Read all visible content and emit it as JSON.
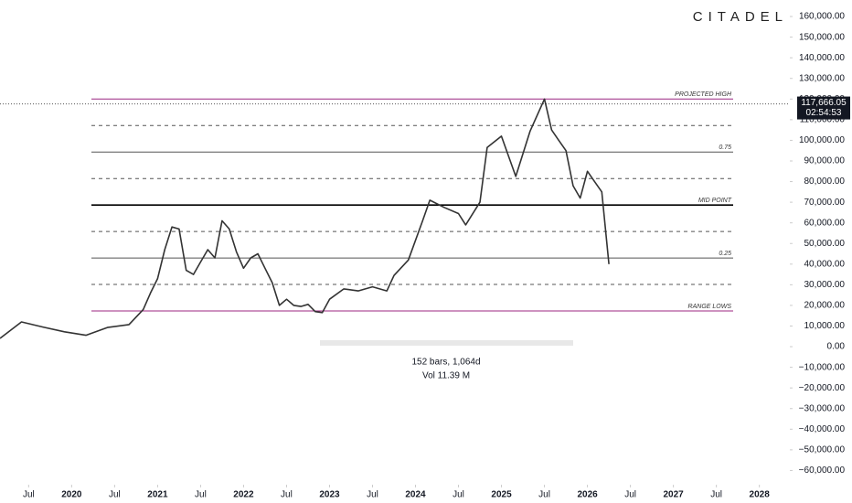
{
  "chart_data": {
    "type": "line",
    "brand": "CITADEL",
    "x": [
      "2019-03",
      "2019-06",
      "2019-09",
      "2019-12",
      "2020-03",
      "2020-06",
      "2020-09",
      "2020-11",
      "2020-12",
      "2021-01",
      "2021-02",
      "2021-03",
      "2021-04",
      "2021-05",
      "2021-06",
      "2021-07",
      "2021-08",
      "2021-09",
      "2021-10",
      "2021-11",
      "2021-12",
      "2022-01",
      "2022-02",
      "2022-03",
      "2022-04",
      "2022-05",
      "2022-06",
      "2022-07",
      "2022-08",
      "2022-09",
      "2022-10",
      "2022-11",
      "2022-12",
      "2023-01",
      "2023-03",
      "2023-05",
      "2023-07",
      "2023-09",
      "2023-10",
      "2023-12",
      "2024-02",
      "2024-03",
      "2024-05",
      "2024-07",
      "2024-08",
      "2024-10",
      "2024-11",
      "2025-01",
      "2025-03",
      "2025-05",
      "2025-07",
      "2025-08",
      "2025-09",
      "2025-10",
      "2025-11",
      "2025-12",
      "2026-01",
      "2026-02",
      "2026-03",
      "2026-04"
    ],
    "series": [
      {
        "color": "#333333",
        "values": [
          4000,
          12000,
          9500,
          7200,
          5500,
          9300,
          10700,
          18000,
          26000,
          33000,
          47000,
          58000,
          57000,
          37000,
          35000,
          41000,
          47000,
          43000,
          61000,
          57000,
          46000,
          38000,
          43000,
          45000,
          38000,
          31000,
          20000,
          23000,
          20000,
          19500,
          20500,
          17000,
          16500,
          23000,
          28000,
          27000,
          29000,
          27000,
          34500,
          42000,
          61000,
          71000,
          67500,
          64500,
          59000,
          70000,
          96500,
          102000,
          82500,
          104500,
          120000,
          105000,
          100000,
          95000,
          78000,
          72000,
          85000,
          80000,
          75000,
          40000
        ]
      }
    ],
    "xlim": [
      "2019-03",
      "2028-05"
    ],
    "xticks": [
      {
        "value": "2019-07",
        "label": "Jul"
      },
      {
        "value": "2020-01",
        "label": "2020"
      },
      {
        "value": "2020-07",
        "label": "Jul"
      },
      {
        "value": "2021-01",
        "label": "2021"
      },
      {
        "value": "2021-07",
        "label": "Jul"
      },
      {
        "value": "2022-01",
        "label": "2022"
      },
      {
        "value": "2022-07",
        "label": "Jul"
      },
      {
        "value": "2023-01",
        "label": "2023"
      },
      {
        "value": "2023-07",
        "label": "Jul"
      },
      {
        "value": "2024-01",
        "label": "2024"
      },
      {
        "value": "2024-07",
        "label": "Jul"
      },
      {
        "value": "2025-01",
        "label": "2025"
      },
      {
        "value": "2025-07",
        "label": "Jul"
      },
      {
        "value": "2026-01",
        "label": "2026"
      },
      {
        "value": "2026-07",
        "label": "Jul"
      },
      {
        "value": "2027-01",
        "label": "2027"
      },
      {
        "value": "2027-07",
        "label": "Jul"
      },
      {
        "value": "2028-01",
        "label": "2028"
      }
    ],
    "ylim": [
      -66900,
      168000
    ],
    "yticks": [
      {
        "value": 160000,
        "label": "160,000.00"
      },
      {
        "value": 150000,
        "label": "150,000.00"
      },
      {
        "value": 140000,
        "label": "140,000.00"
      },
      {
        "value": 130000,
        "label": "130,000.00"
      },
      {
        "value": 120000,
        "label": "120,000.00"
      },
      {
        "value": 110000,
        "label": "110,000.00"
      },
      {
        "value": 100000,
        "label": "100,000.00"
      },
      {
        "value": 90000,
        "label": "90,000.00"
      },
      {
        "value": 80000,
        "label": "80,000.00"
      },
      {
        "value": 70000,
        "label": "70,000.00"
      },
      {
        "value": 60000,
        "label": "60,000.00"
      },
      {
        "value": 50000,
        "label": "50,000.00"
      },
      {
        "value": 40000,
        "label": "40,000.00"
      },
      {
        "value": 30000,
        "label": "30,000.00"
      },
      {
        "value": 20000,
        "label": "20,000.00"
      },
      {
        "value": 10000,
        "label": "10,000.00"
      },
      {
        "value": 0,
        "label": "0.00"
      },
      {
        "value": -10000,
        "label": "−10,000.00"
      },
      {
        "value": -20000,
        "label": "−20,000.00"
      },
      {
        "value": -30000,
        "label": "−30,000.00"
      },
      {
        "value": -40000,
        "label": "−40,000.00"
      },
      {
        "value": -50000,
        "label": "−50,000.00"
      },
      {
        "value": -60000,
        "label": "−60,000.00"
      }
    ],
    "levels": [
      {
        "value": 120000,
        "label": "PROJECTED HIGH",
        "color": "#9c2780",
        "style": "solid"
      },
      {
        "value": 107160,
        "color": "#555555",
        "style": "dashed"
      },
      {
        "value": 94325,
        "label": "0.75",
        "color": "#555555",
        "style": "solid"
      },
      {
        "value": 81490,
        "color": "#555555",
        "style": "dashed"
      },
      {
        "value": 68650,
        "label": "MID POINT",
        "color": "#000000",
        "style": "bold"
      },
      {
        "value": 55810,
        "color": "#555555",
        "style": "dashed"
      },
      {
        "value": 42975,
        "label": "0.25",
        "color": "#555555",
        "style": "solid"
      },
      {
        "value": 30140,
        "color": "#555555",
        "style": "dashed"
      },
      {
        "value": 17300,
        "label": "RANGE LOWS",
        "color": "#9c2780",
        "style": "solid"
      }
    ],
    "last_price": {
      "value": 117666.05,
      "label": "117,666.05",
      "countdown": "02:54:53"
    },
    "annotations": [
      "152 bars, 1,064d",
      "Vol 11.39 M"
    ]
  }
}
